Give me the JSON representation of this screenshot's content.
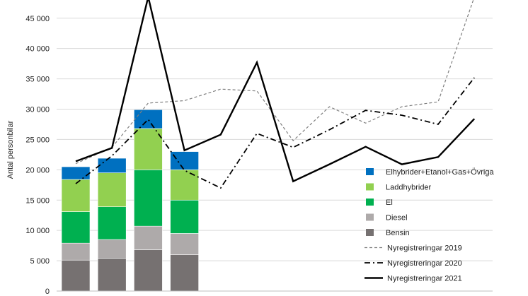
{
  "chart_data": {
    "type": "bar+line",
    "title": "",
    "ylabel": "Antal personbilar",
    "xlabel": "",
    "ylim": [
      0,
      48000
    ],
    "yticks": [
      "0",
      "5 000",
      "10 000",
      "15 000",
      "20 000",
      "25 000",
      "30 000",
      "35 000",
      "40 000",
      "45 000"
    ],
    "ytick_values": [
      0,
      5000,
      10000,
      15000,
      20000,
      25000,
      30000,
      35000,
      40000,
      45000
    ],
    "grid": true,
    "n_periods": 12,
    "bar_series": [
      {
        "name": "Bensin",
        "color": "#767171",
        "values": [
          5100,
          5400,
          6800,
          6000
        ]
      },
      {
        "name": "Diesel",
        "color": "#aeaaaa",
        "values": [
          2800,
          3100,
          3900,
          3500
        ]
      },
      {
        "name": "El",
        "color": "#00b050",
        "values": [
          5200,
          5400,
          9300,
          5500
        ]
      },
      {
        "name": "Laddhybrider",
        "color": "#92d050",
        "values": [
          5300,
          5600,
          6800,
          5000
        ]
      },
      {
        "name": "Elhybrider+Etanol+Gas+Övriga",
        "color": "#0070c0",
        "values": [
          2100,
          2400,
          3100,
          3000
        ]
      }
    ],
    "line_series": [
      {
        "name": "Nyregistreringar 2019",
        "style": "dashed",
        "color": "#7f7f7f",
        "values": [
          21000,
          23700,
          31000,
          31400,
          33300,
          33000,
          24800,
          30400,
          27700,
          30400,
          31200,
          48500
        ]
      },
      {
        "name": "Nyregistreringar 2020",
        "style": "dashdot",
        "color": "#000000",
        "values": [
          17700,
          22300,
          28300,
          19900,
          17000,
          26000,
          23700,
          26600,
          29800,
          29000,
          27500,
          35200
        ]
      },
      {
        "name": "Nyregistreringar 2021",
        "style": "solid",
        "color": "#000000",
        "values": [
          21400,
          23600,
          48500,
          23200,
          25800,
          37700,
          18100,
          20900,
          23800,
          20900,
          22100,
          28400
        ]
      }
    ],
    "legend_order": [
      "Elhybrider+Etanol+Gas+Övriga",
      "Laddhybrider",
      "El",
      "Diesel",
      "Bensin",
      "Nyregistreringar 2019",
      "Nyregistreringar 2020",
      "Nyregistreringar 2021"
    ],
    "legend_placement": "right"
  }
}
